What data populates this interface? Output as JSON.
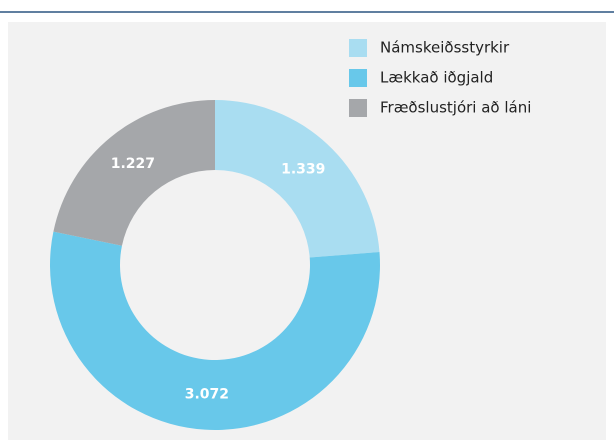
{
  "chart_data": {
    "type": "donut",
    "categories": [
      "Námskeiðsstyrkir",
      "Lækkað iðgjald",
      "Fræðslustjóri að láni"
    ],
    "values": [
      1339,
      3072,
      1227
    ],
    "value_labels": [
      "1.339",
      "3.072",
      "1.227"
    ],
    "colors": [
      "#a9ddf1",
      "#68c8ea",
      "#a5a7aa"
    ],
    "legend": "top-right"
  }
}
